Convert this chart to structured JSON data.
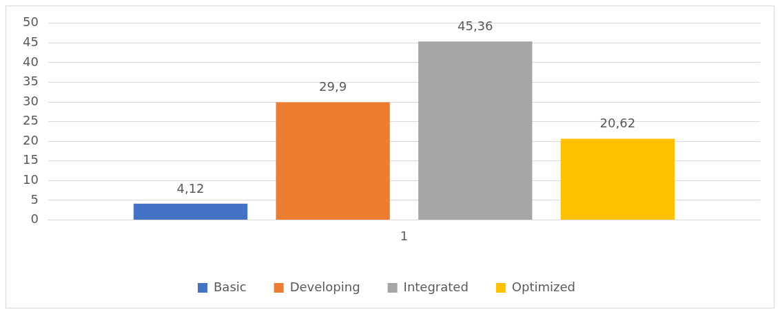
{
  "chart_data": {
    "type": "bar",
    "categories": [
      "1"
    ],
    "series": [
      {
        "name": "Basic",
        "color": "#4472c4",
        "values": [
          4.12
        ],
        "value_labels": [
          "4,12"
        ]
      },
      {
        "name": "Developing",
        "color": "#ed7d31",
        "values": [
          29.9
        ],
        "value_labels": [
          "29,9"
        ]
      },
      {
        "name": "Integrated",
        "color": "#a5a5a5",
        "values": [
          45.36
        ],
        "value_labels": [
          "45,36"
        ]
      },
      {
        "name": "Optimized",
        "color": "#ffc000",
        "values": [
          20.62
        ],
        "value_labels": [
          "20,62"
        ]
      }
    ],
    "ylim": [
      0,
      50
    ],
    "yticks": [
      0,
      5,
      10,
      15,
      20,
      25,
      30,
      35,
      40,
      45,
      50
    ],
    "grid": "y",
    "legend": "bottom"
  }
}
